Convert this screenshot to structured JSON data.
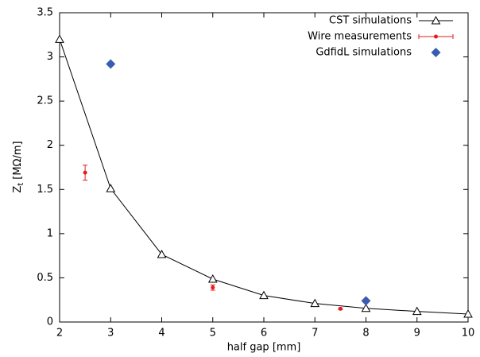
{
  "chart_data": {
    "type": "line",
    "xlabel": "half gap [mm]",
    "ylabel": {
      "main": "Z",
      "sub": "t",
      "unit": "[MΩ/m]"
    },
    "xlim": [
      2,
      10
    ],
    "xticks": [
      2,
      3,
      4,
      5,
      6,
      7,
      8,
      9,
      10
    ],
    "ylim": [
      0,
      3.5
    ],
    "yticks": [
      0,
      0.5,
      1,
      1.5,
      2,
      2.5,
      3,
      3.5
    ],
    "legend": "top-right",
    "series": [
      {
        "name": "CST simulations",
        "color": "#000000",
        "style": "line-triangle",
        "x": [
          2,
          3,
          4,
          5,
          6,
          7,
          8,
          9,
          10
        ],
        "values": [
          3.2,
          1.51,
          0.765,
          0.486,
          0.3,
          0.21,
          0.155,
          0.12,
          0.09
        ]
      },
      {
        "name": "Wire measurements",
        "color": "#e41a1c",
        "style": "errorbar",
        "x": [
          2.5,
          5,
          7.5
        ],
        "values": [
          1.69,
          0.39,
          0.15
        ],
        "errors": [
          0.085,
          0.03,
          0.01
        ]
      },
      {
        "name": "GdfidL simulations",
        "color": "#3a5cb0",
        "style": "diamond",
        "x": [
          3,
          8
        ],
        "values": [
          2.92,
          0.24
        ]
      }
    ]
  }
}
